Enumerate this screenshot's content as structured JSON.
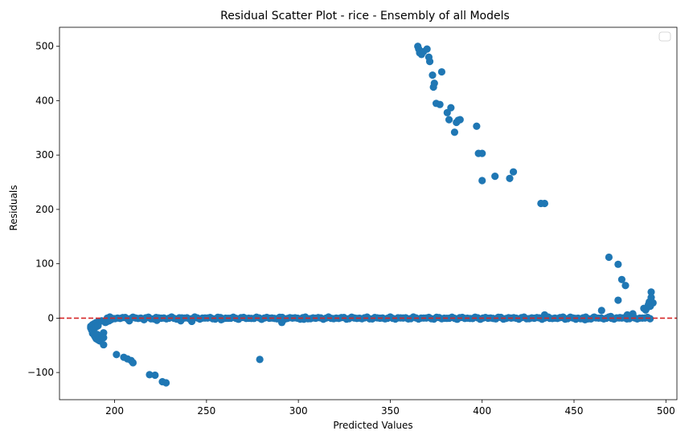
{
  "chart_data": {
    "type": "scatter",
    "title": "Residual Scatter Plot - rice  - Ensembly of all Models",
    "xlabel": "Predicted Values",
    "ylabel": "Residuals",
    "xlim": [
      170,
      506
    ],
    "ylim": [
      -150,
      535
    ],
    "xticks": [
      200,
      250,
      300,
      350,
      400,
      450,
      500
    ],
    "yticks": [
      -100,
      0,
      100,
      200,
      300,
      400,
      500
    ],
    "xtick_labels": [
      "200",
      "250",
      "300",
      "350",
      "400",
      "450",
      "500"
    ],
    "ytick_labels": [
      "−100",
      "0",
      "100",
      "200",
      "300",
      "400",
      "500"
    ],
    "grid": false,
    "legend": "top-right",
    "reference_line": {
      "y": 0,
      "color": "#d62728",
      "style": "dashed"
    },
    "marker_color": "#1f77b4",
    "points": [
      [
        187,
        -18
      ],
      [
        187.5,
        -22
      ],
      [
        188,
        -28
      ],
      [
        188.5,
        -25
      ],
      [
        189,
        -32
      ],
      [
        189.5,
        -35
      ],
      [
        190,
        -38
      ],
      [
        190.5,
        -30
      ],
      [
        191,
        -40
      ],
      [
        191.5,
        -36
      ],
      [
        192,
        -42
      ],
      [
        193,
        -33
      ],
      [
        194,
        -49
      ],
      [
        194,
        -27
      ],
      [
        194,
        -36
      ],
      [
        195,
        -8
      ],
      [
        196,
        -6
      ],
      [
        197,
        -5
      ],
      [
        198,
        -3
      ],
      [
        187,
        -15
      ],
      [
        188,
        -12
      ],
      [
        189,
        -10
      ],
      [
        190,
        -8
      ],
      [
        191,
        -7
      ],
      [
        192,
        -6
      ],
      [
        193,
        -5
      ],
      [
        188,
        -20
      ],
      [
        189,
        -18
      ],
      [
        190,
        -16
      ],
      [
        191,
        -14
      ],
      [
        201,
        -67
      ],
      [
        205,
        -72
      ],
      [
        207,
        -75
      ],
      [
        209,
        -78
      ],
      [
        210,
        -82
      ],
      [
        219,
        -104
      ],
      [
        222,
        -105
      ],
      [
        226,
        -117
      ],
      [
        228,
        -119
      ],
      [
        279,
        -76
      ],
      [
        291,
        -8
      ],
      [
        208,
        -5
      ],
      [
        216,
        -3
      ],
      [
        223,
        -4
      ],
      [
        236,
        -5
      ],
      [
        242,
        -6
      ],
      [
        258,
        -3
      ],
      [
        303,
        -2
      ],
      [
        365,
        500
      ],
      [
        365.5,
        495
      ],
      [
        366,
        488
      ],
      [
        367,
        485
      ],
      [
        368,
        490
      ],
      [
        370,
        495
      ],
      [
        371,
        480
      ],
      [
        371.5,
        472
      ],
      [
        373,
        447
      ],
      [
        373.5,
        425
      ],
      [
        374,
        432
      ],
      [
        375,
        395
      ],
      [
        378,
        453
      ],
      [
        377,
        393
      ],
      [
        381,
        378
      ],
      [
        382,
        365
      ],
      [
        383,
        387
      ],
      [
        385,
        342
      ],
      [
        386,
        360
      ],
      [
        387,
        364
      ],
      [
        388,
        365
      ],
      [
        397,
        353
      ],
      [
        398,
        303
      ],
      [
        400,
        303
      ],
      [
        400,
        253
      ],
      [
        407,
        261
      ],
      [
        415,
        257
      ],
      [
        417,
        269
      ],
      [
        432,
        211
      ],
      [
        434,
        211
      ],
      [
        469,
        112
      ],
      [
        474,
        99
      ],
      [
        474,
        33
      ],
      [
        476,
        71
      ],
      [
        478,
        60
      ],
      [
        465,
        14
      ],
      [
        470,
        3
      ],
      [
        479,
        6
      ],
      [
        482,
        8
      ],
      [
        488,
        18
      ],
      [
        489,
        15
      ],
      [
        490,
        20
      ],
      [
        491,
        30
      ],
      [
        492,
        48
      ],
      [
        492,
        38
      ],
      [
        493,
        28
      ],
      [
        491.5,
        22
      ],
      [
        490.5,
        25
      ],
      [
        434,
        6
      ],
      [
        436,
        2
      ],
      [
        444,
        2
      ],
      [
        451,
        -2
      ],
      [
        456,
        -3
      ],
      [
        461,
        2
      ],
      [
        475,
        1
      ]
    ],
    "dense_band": {
      "x_start": 196,
      "x_end": 492,
      "step": 1.4,
      "amplitude": 2.2
    }
  }
}
